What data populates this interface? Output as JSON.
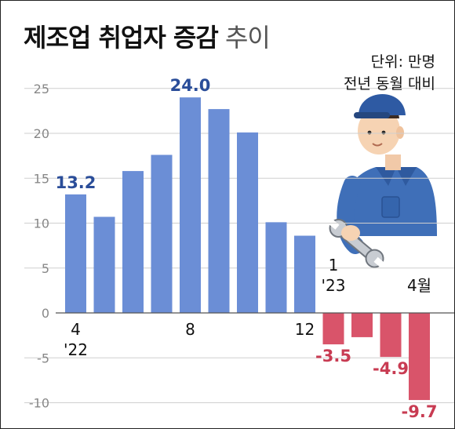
{
  "title": {
    "bold": "제조업 취업자 증감",
    "light": "추이"
  },
  "unit": {
    "line1": "단위: 만명",
    "line2": "전년 동월 대비"
  },
  "colors": {
    "positive": "#6b8ed6",
    "negative": "#d9546a",
    "label_positive": "#2a4d99",
    "label_negative": "#c83b52",
    "grid": "#cfcfcf"
  },
  "illustration": {
    "name": "factory-worker-with-wrench-icon"
  },
  "chart_data": {
    "type": "bar",
    "categories": [
      "2022-04",
      "2022-05",
      "2022-06",
      "2022-07",
      "2022-08",
      "2022-09",
      "2022-10",
      "2022-11",
      "2022-12",
      "2023-01",
      "2023-02",
      "2023-03",
      "2023-04"
    ],
    "values": [
      13.2,
      10.7,
      15.8,
      17.6,
      24.0,
      22.7,
      20.1,
      10.1,
      8.6,
      -3.5,
      -2.7,
      -4.9,
      -9.7
    ],
    "data_labels": [
      {
        "index": 0,
        "text": "13.2"
      },
      {
        "index": 4,
        "text": "24.0"
      },
      {
        "index": 9,
        "text": "-3.5"
      },
      {
        "index": 11,
        "text": "-4.9"
      },
      {
        "index": 12,
        "text": "-9.7"
      }
    ],
    "x_tick_labels": [
      {
        "index": 0,
        "lines": [
          "4",
          "'22"
        ]
      },
      {
        "index": 4,
        "lines": [
          "8"
        ]
      },
      {
        "index": 8,
        "lines": [
          "12"
        ]
      },
      {
        "index": 9,
        "lines": [
          "1",
          "'23"
        ]
      },
      {
        "index": 12,
        "lines": [
          "4월"
        ]
      }
    ],
    "y_ticks": [
      25,
      20,
      15,
      10,
      5,
      0,
      -5,
      -10
    ],
    "ylim": [
      -10.5,
      27.5
    ],
    "grid": true
  }
}
